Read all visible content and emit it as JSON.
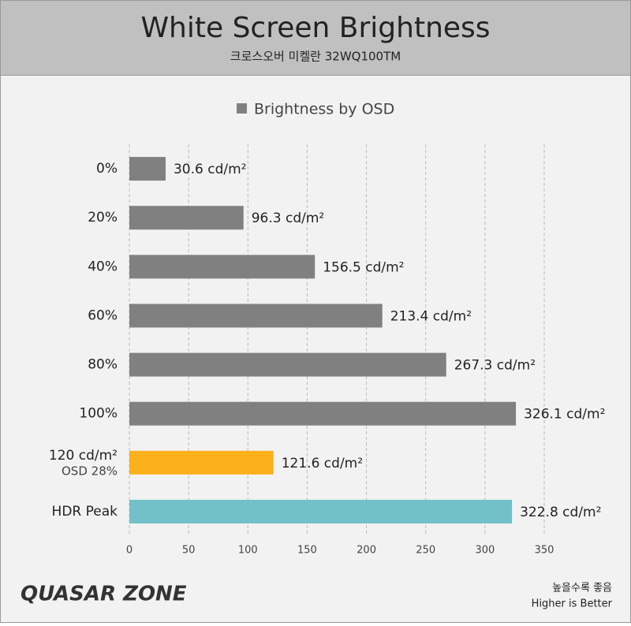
{
  "chart_data": {
    "type": "barh",
    "title": "White Screen Brightness",
    "subtitle": "크로스오버 미켈란 32WQ100TM",
    "categories": [
      "0%",
      "20%",
      "40%",
      "60%",
      "80%",
      "100%",
      "120 cd/m²",
      "HDR Peak"
    ],
    "category_sublabels": [
      null,
      null,
      null,
      null,
      null,
      null,
      "OSD 28%",
      null
    ],
    "series": [
      {
        "name": "Brightness by OSD",
        "color": "#808080",
        "values": [
          30.6,
          96.3,
          156.5,
          213.4,
          267.3,
          326.1,
          121.6,
          322.8
        ],
        "value_labels": [
          "30.6 cd/m²",
          "96.3 cd/m²",
          "156.5 cd/m²",
          "213.4 cd/m²",
          "267.3 cd/m²",
          "326.1 cd/m²",
          "121.6 cd/m²",
          "322.8 cd/m²"
        ],
        "point_colors": [
          "#808080",
          "#808080",
          "#808080",
          "#808080",
          "#808080",
          "#808080",
          "#fbb01c",
          "#72c0c8"
        ]
      }
    ],
    "xlim": [
      0,
      350
    ],
    "xticks": [
      0,
      50,
      100,
      150,
      200,
      250,
      300,
      350
    ],
    "grid": true,
    "legend": "top",
    "logo": "QUASAR ZONE",
    "note": "높을수록 좋음",
    "note_en": "Higher is Better"
  }
}
